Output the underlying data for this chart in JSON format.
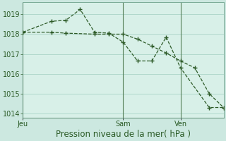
{
  "background_color": "#cce8e0",
  "plot_bg_color": "#d8f0e8",
  "grid_color": "#b0d8cc",
  "line_color": "#2d5a27",
  "line1_x": [
    0,
    2,
    3,
    5,
    6,
    7,
    8,
    9,
    10,
    11,
    12,
    13,
    14
  ],
  "line1_y": [
    1018.1,
    1018.1,
    1018.05,
    1018.0,
    1018.0,
    1018.0,
    1017.75,
    1017.4,
    1017.05,
    1016.65,
    1016.3,
    1015.0,
    1014.3
  ],
  "line2_x": [
    0,
    2,
    3,
    4,
    5,
    6,
    7,
    8,
    9,
    10,
    11,
    13,
    14
  ],
  "line2_y": [
    1018.1,
    1018.65,
    1018.7,
    1019.25,
    1018.1,
    1018.05,
    1017.6,
    1016.65,
    1016.65,
    1017.85,
    1016.3,
    1014.3,
    1014.3
  ],
  "xtick_positions": [
    0,
    7,
    11
  ],
  "xtick_labels": [
    "Jeu",
    "Sam",
    "Ven"
  ],
  "vline_positions": [
    0,
    7,
    11
  ],
  "xlim": [
    0,
    14
  ],
  "ylim": [
    1013.8,
    1019.6
  ],
  "ytick_positions": [
    1014,
    1015,
    1016,
    1017,
    1018,
    1019
  ],
  "xlabel": "Pression niveau de la mer( hPa )",
  "xlabel_fontsize": 8.5,
  "tick_fontsize": 7.0,
  "marker": "P"
}
